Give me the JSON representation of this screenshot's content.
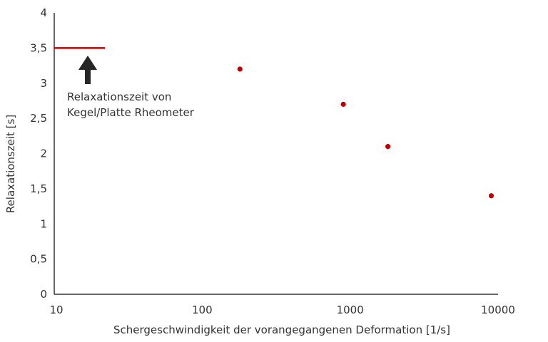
{
  "chart_data": {
    "type": "scatter",
    "xlabel": "Schergeschwindigkeit der vorangegangenen Deformation [1/s]",
    "ylabel": "Relaxationszeit [s]",
    "x_scale": "log",
    "xlim": [
      10,
      10000
    ],
    "ylim": [
      0,
      4
    ],
    "x_ticks": [
      10,
      100,
      1000,
      10000
    ],
    "x_tick_labels": [
      "10",
      "100",
      "1000",
      "10000"
    ],
    "y_ticks": [
      0,
      0.5,
      1,
      1.5,
      2,
      2.5,
      3,
      3.5,
      4
    ],
    "y_tick_labels": [
      "0",
      "0,5",
      "1",
      "1,5",
      "2",
      "2,5",
      "3",
      "3,5",
      "4"
    ],
    "grid": false,
    "series": [
      {
        "x": [
          180,
          900,
          1800,
          9000
        ],
        "y": [
          3.2,
          2.7,
          2.1,
          1.4
        ],
        "color": "#c00000"
      }
    ],
    "reference_line": {
      "y": 3.5,
      "x_range": [
        10,
        22
      ],
      "color": "#c00000"
    },
    "annotation": {
      "lines": [
        "Relaxationszeit von",
        "Kegel/Platte Rheometer"
      ],
      "arrow_color": "#262626"
    }
  }
}
